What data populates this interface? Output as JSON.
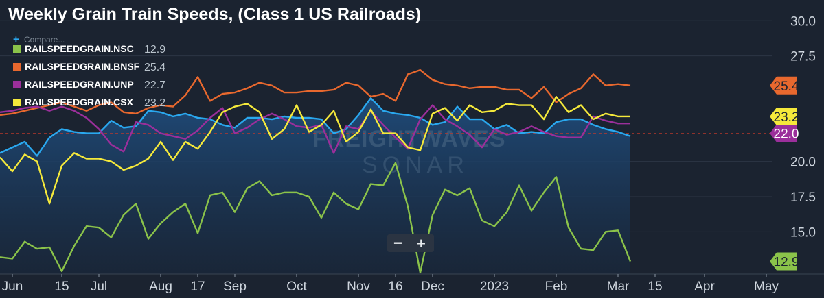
{
  "chart_data": {
    "type": "line",
    "title": "Weekly Grain Train Speeds, (Class 1 US Railroads)",
    "compare_label": "Compare...",
    "compare_plus": "+",
    "watermark": {
      "line1": "FREIGHTWAVES",
      "line2": "SONAR"
    },
    "zoom": {
      "minus": "−",
      "plus": "+"
    },
    "ylim": [
      12,
      30.5
    ],
    "y_ticks": [
      {
        "v": 15.0,
        "label": "15.0"
      },
      {
        "v": 17.5,
        "label": "17.5"
      },
      {
        "v": 20.0,
        "label": "20.0"
      },
      {
        "v": 27.5,
        "label": "27.5"
      },
      {
        "v": 30.0,
        "label": "30.0"
      }
    ],
    "x_ticks": [
      {
        "i": 1,
        "label": "Jun"
      },
      {
        "i": 5,
        "label": "15"
      },
      {
        "i": 8,
        "label": "Jul"
      },
      {
        "i": 13,
        "label": "Aug"
      },
      {
        "i": 16,
        "label": "17"
      },
      {
        "i": 19,
        "label": "Sep"
      },
      {
        "i": 24,
        "label": "Oct"
      },
      {
        "i": 29,
        "label": "Nov"
      },
      {
        "i": 32,
        "label": "16"
      },
      {
        "i": 35,
        "label": "Dec"
      },
      {
        "i": 40,
        "label": "2023"
      },
      {
        "i": 45,
        "label": "Feb"
      },
      {
        "i": 50,
        "label": "Mar"
      },
      {
        "i": 53,
        "label": "15"
      },
      {
        "i": 57,
        "label": "Apr"
      },
      {
        "i": 62,
        "label": "May"
      }
    ],
    "reference_line": 22.0,
    "series": [
      {
        "name": "RAILSPEEDGRAIN.NSC",
        "last": "12.9",
        "badge": "12.9",
        "color": "#8bc34a",
        "badge_text_color": "#1b2330",
        "values": [
          13.2,
          13.1,
          14.3,
          13.8,
          13.9,
          12.2,
          14.0,
          15.4,
          15.3,
          14.6,
          16.2,
          17.0,
          14.5,
          15.6,
          16.4,
          17.0,
          14.9,
          17.6,
          17.8,
          16.4,
          18.1,
          18.6,
          17.6,
          17.8,
          17.8,
          17.5,
          16.0,
          17.8,
          17.0,
          16.6,
          18.4,
          18.3,
          19.9,
          16.8,
          12.1,
          16.2,
          18.0,
          17.6,
          18.1,
          15.8,
          15.4,
          16.4,
          18.3,
          16.5,
          17.8,
          18.9,
          15.3,
          13.8,
          13.7,
          15.0,
          15.1,
          12.9
        ]
      },
      {
        "name": "RAILSPEEDGRAIN.BNSF",
        "last": "25.4",
        "badge": "25.4",
        "color": "#e8682e",
        "badge_text_color": "#1b2330",
        "values": [
          23.3,
          23.4,
          23.6,
          23.8,
          24.0,
          24.2,
          23.9,
          23.6,
          24.0,
          24.2,
          23.5,
          23.4,
          23.8,
          24.0,
          23.9,
          24.7,
          26.0,
          24.3,
          24.8,
          24.9,
          25.2,
          25.6,
          25.4,
          24.9,
          24.9,
          25.0,
          25.0,
          25.1,
          25.6,
          25.4,
          24.6,
          24.8,
          24.3,
          26.2,
          26.5,
          25.8,
          25.5,
          25.4,
          25.2,
          25.3,
          25.3,
          25.1,
          25.1,
          24.5,
          25.3,
          24.2,
          24.8,
          25.2,
          26.2,
          25.4,
          25.5,
          25.4
        ]
      },
      {
        "name": "RAILSPEEDGRAIN.UNP",
        "last": "22.7",
        "badge": "22.0",
        "color": "#9b2f9b",
        "badge_text_color": "#ffffff",
        "values": [
          23.5,
          23.6,
          23.8,
          23.9,
          23.6,
          23.9,
          23.6,
          23.1,
          22.3,
          21.2,
          20.7,
          22.8,
          22.6,
          22.0,
          21.8,
          21.6,
          22.2,
          23.1,
          23.8,
          22.0,
          22.4,
          23.0,
          23.4,
          23.0,
          22.5,
          22.4,
          22.6,
          20.6,
          22.5,
          22.3,
          23.6,
          22.6,
          21.7,
          20.9,
          23.0,
          24.0,
          23.0,
          22.5,
          21.9,
          21.0,
          22.3,
          21.9,
          22.1,
          22.5,
          22.1,
          21.8,
          21.7,
          21.7,
          23.2,
          22.9,
          22.7,
          22.7
        ]
      },
      {
        "name": "RAILSPEEDGRAIN.CSX",
        "last": "23.2",
        "badge": "23.2",
        "color": "#f5e93b",
        "badge_text_color": "#1b2330",
        "values": [
          20.3,
          19.3,
          20.5,
          20.0,
          17.0,
          19.7,
          20.6,
          20.2,
          20.2,
          20.0,
          19.4,
          19.7,
          20.2,
          21.4,
          20.1,
          21.4,
          20.9,
          22.1,
          23.5,
          23.9,
          24.1,
          23.5,
          21.6,
          22.3,
          24.0,
          22.1,
          22.6,
          23.6,
          21.4,
          22.1,
          23.7,
          22.0,
          22.0,
          21.0,
          20.8,
          23.4,
          23.8,
          22.9,
          24.0,
          23.5,
          23.6,
          24.1,
          24.0,
          24.0,
          23.0,
          24.6,
          23.5,
          24.0,
          23.0,
          23.4,
          23.2,
          23.2
        ]
      },
      {
        "name": "",
        "last": "",
        "badge": "",
        "color": "#2aa8ef",
        "badge_text_color": "#1b2330",
        "values": [
          20.6,
          21.0,
          21.4,
          20.4,
          21.7,
          22.3,
          22.1,
          22.0,
          22.0,
          22.9,
          22.4,
          22.5,
          23.6,
          23.5,
          23.2,
          23.4,
          23.1,
          23.0,
          22.6,
          22.4,
          23.1,
          23.1,
          23.0,
          23.2,
          23.1,
          23.1,
          23.0,
          22.0,
          22.3,
          23.3,
          24.5,
          23.6,
          23.4,
          23.3,
          23.1,
          22.6,
          22.8,
          23.9,
          23.0,
          23.0,
          22.3,
          22.6,
          22.0,
          22.1,
          22.0,
          22.8,
          23.0,
          23.0,
          22.6,
          22.3,
          22.1,
          21.8
        ]
      }
    ]
  }
}
